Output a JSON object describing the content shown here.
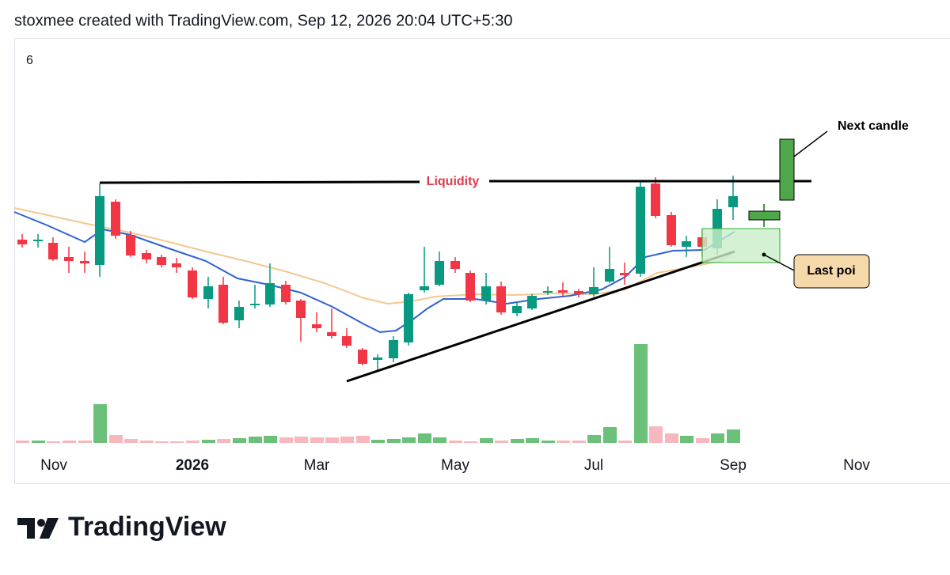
{
  "header": {
    "text": "stoxmee created with TradingView.com, Sep 12, 2026 20:04 UTC+5:30"
  },
  "chart": {
    "corner_label": "6",
    "x_labels": [
      "Nov",
      "2026",
      "Mar",
      "May",
      "Jul",
      "Sep",
      "Nov"
    ],
    "annotations": {
      "liquidity": "Liquidity",
      "next_candle": "Next candle",
      "last_poi": "Last poi"
    }
  },
  "footer": {
    "brand": "TradingView"
  }
}
